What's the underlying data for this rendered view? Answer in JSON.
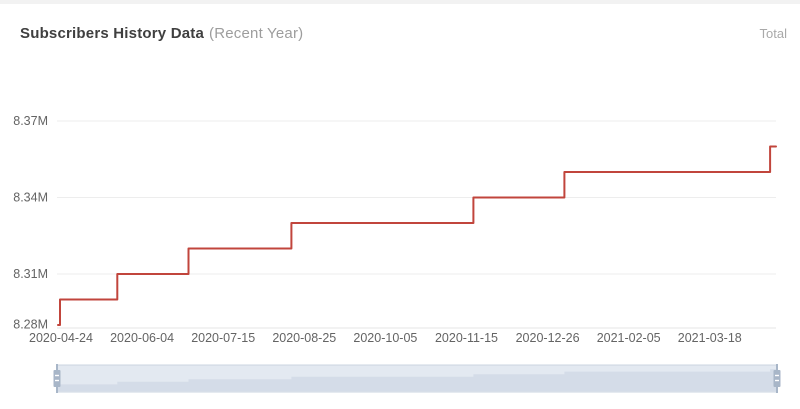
{
  "header": {
    "title": "Subscribers History Data",
    "subtitle": "(Recent Year)",
    "legend_label": "Total"
  },
  "colors": {
    "line": "#c1453c",
    "grid_line": "#ededed",
    "axis_line": "#e4e4e4",
    "axis_label": "#646464",
    "title_text": "#3f3f3f",
    "subtitle_text": "#9d9d9d",
    "legend_text": "#a9a9a9",
    "top_strip": "#f2f2f2",
    "slider_band": "#e3e9f1",
    "slider_silhouette": "#d4dce8",
    "slider_border": "#cbd4e0",
    "slider_handle": "#a8b6c8",
    "slider_grip": "#ffffff"
  },
  "chart_data": {
    "type": "line",
    "step": true,
    "title": "Subscribers History Data (Recent Year)",
    "xlabel": "",
    "ylabel": "",
    "unit": "M subscribers",
    "legend_position": "top-right",
    "grid": "horizontal-only",
    "series": [
      {
        "name": "Total",
        "points": [
          [
            "2020-04-24",
            8.29
          ],
          [
            "2020-04-25",
            8.3
          ],
          [
            "2020-05-24",
            8.31
          ],
          [
            "2020-06-29",
            8.32
          ],
          [
            "2020-08-20",
            8.33
          ],
          [
            "2020-11-20",
            8.34
          ],
          [
            "2021-01-05",
            8.35
          ],
          [
            "2021-04-19",
            8.36
          ],
          [
            "2021-04-22",
            8.36
          ]
        ]
      }
    ],
    "x_ticks": [
      "2020-04-24",
      "2020-06-04",
      "2020-07-15",
      "2020-08-25",
      "2020-10-05",
      "2020-11-15",
      "2020-12-26",
      "2021-02-05",
      "2021-03-18"
    ],
    "y_ticks": [
      {
        "label": "8.28M",
        "value": 8.28
      },
      {
        "label": "8.31M",
        "value": 8.31
      },
      {
        "label": "8.34M",
        "value": 8.34
      },
      {
        "label": "8.37M",
        "value": 8.37
      }
    ],
    "ylim": [
      8.28,
      8.37
    ],
    "xlim": [
      "2020-04-24",
      "2021-04-22"
    ]
  },
  "slider": {
    "full_range_selected": true,
    "range_start": "2020-04-24",
    "range_end": "2021-04-22"
  }
}
